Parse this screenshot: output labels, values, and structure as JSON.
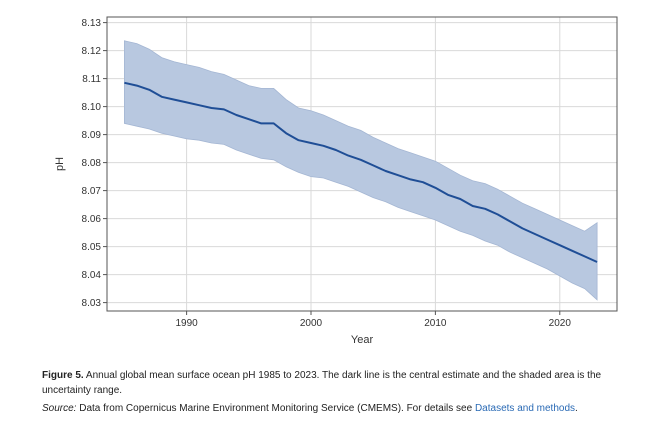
{
  "chart_data": {
    "type": "area",
    "xlabel": "Year",
    "ylabel": "pH",
    "xlim": [
      1983.6,
      2024.6
    ],
    "ylim": [
      8.027,
      8.132
    ],
    "x_ticks": [
      1990,
      2000,
      2010,
      2020
    ],
    "y_ticks": [
      8.03,
      8.04,
      8.05,
      8.06,
      8.07,
      8.08,
      8.09,
      8.1,
      8.11,
      8.12,
      8.13
    ],
    "y_tick_labels": [
      "8.03",
      "8.04",
      "8.05",
      "8.06",
      "8.07",
      "8.08",
      "8.09",
      "8.10",
      "8.11",
      "8.12",
      "8.13"
    ],
    "grid": true,
    "x": [
      1985,
      1986,
      1987,
      1988,
      1989,
      1990,
      1991,
      1992,
      1993,
      1994,
      1995,
      1996,
      1997,
      1998,
      1999,
      2000,
      2001,
      2002,
      2003,
      2004,
      2005,
      2006,
      2007,
      2008,
      2009,
      2010,
      2011,
      2012,
      2013,
      2014,
      2015,
      2016,
      2017,
      2018,
      2019,
      2020,
      2021,
      2022,
      2023
    ],
    "series": [
      {
        "role": "central",
        "color": "#1f4e96",
        "values": [
          8.1085,
          8.1075,
          8.106,
          8.1035,
          8.1025,
          8.1015,
          8.1005,
          8.0995,
          8.099,
          8.097,
          8.0955,
          8.094,
          8.094,
          8.0905,
          8.088,
          8.087,
          8.086,
          8.0845,
          8.0825,
          8.081,
          8.079,
          8.077,
          8.0755,
          8.074,
          8.073,
          8.071,
          8.0685,
          8.067,
          8.0645,
          8.0635,
          8.0615,
          8.059,
          8.0565,
          8.0545,
          8.0525,
          8.0505,
          8.0485,
          8.0465,
          8.0445
        ]
      },
      {
        "role": "upper",
        "color": "#b8c8e0",
        "values": [
          8.1235,
          8.1225,
          8.1205,
          8.1175,
          8.116,
          8.115,
          8.114,
          8.1125,
          8.1115,
          8.1095,
          8.1075,
          8.1065,
          8.1065,
          8.1025,
          8.0995,
          8.0985,
          8.097,
          8.095,
          8.093,
          8.0915,
          8.089,
          8.087,
          8.085,
          8.0835,
          8.082,
          8.0805,
          8.078,
          8.0755,
          8.0735,
          8.0725,
          8.0705,
          8.068,
          8.0655,
          8.0635,
          8.0615,
          8.0595,
          8.0575,
          8.0555,
          8.0585
        ]
      },
      {
        "role": "lower",
        "color": "#b8c8e0",
        "values": [
          8.094,
          8.093,
          8.092,
          8.0905,
          8.0895,
          8.0885,
          8.088,
          8.087,
          8.0865,
          8.0845,
          8.083,
          8.0815,
          8.081,
          8.0785,
          8.0765,
          8.075,
          8.0745,
          8.073,
          8.0715,
          8.0695,
          8.0675,
          8.066,
          8.064,
          8.0625,
          8.061,
          8.0595,
          8.0575,
          8.0555,
          8.054,
          8.052,
          8.0505,
          8.048,
          8.046,
          8.044,
          8.042,
          8.0395,
          8.037,
          8.035,
          8.031
        ]
      }
    ]
  },
  "caption": {
    "label": "Figure 5.",
    "text": " Annual global mean surface ocean pH 1985 to 2023. The dark line is the central estimate and the shaded area is the uncertainty range."
  },
  "source": {
    "label": "Source:",
    "text": " Data from Copernicus Marine Environment Monitoring Service (CMEMS). For details see ",
    "link": "Datasets and methods",
    "end": "."
  }
}
